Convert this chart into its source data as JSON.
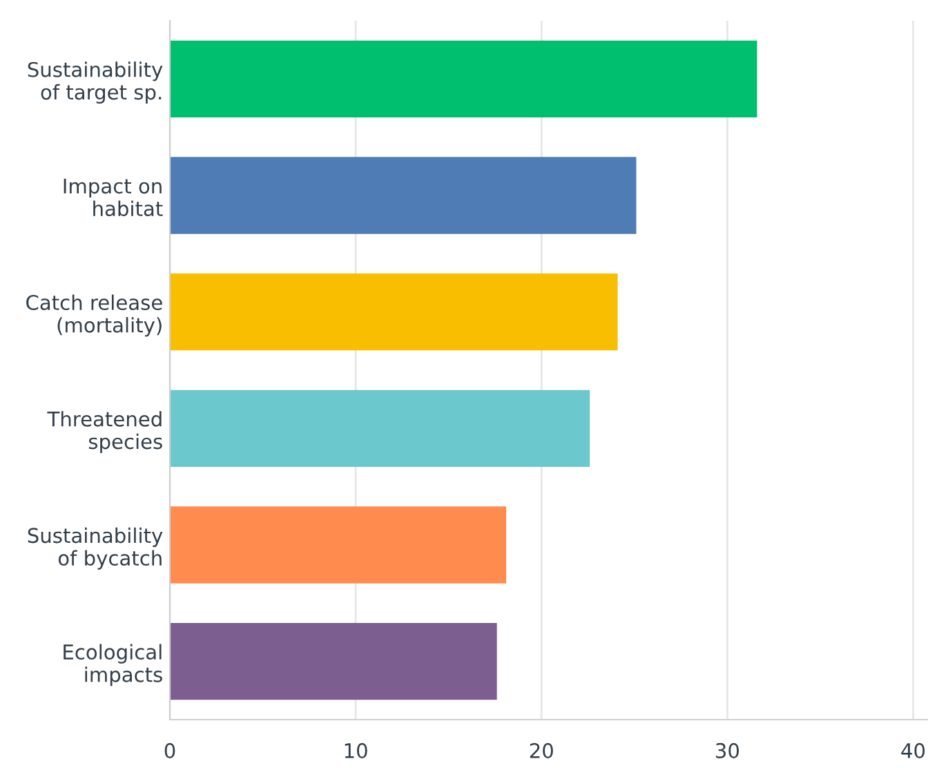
{
  "chart_data": {
    "type": "bar",
    "orientation": "horizontal",
    "categories": [
      "Sustainability\nof target sp.",
      "Impact on\nhabitat",
      "Catch release\n(mortality)",
      "Threatened\nspecies",
      "Sustainability\nof bycatch",
      "Ecological\nimpacts"
    ],
    "values": [
      31.6,
      25.1,
      24.1,
      22.6,
      18.1,
      17.6
    ],
    "colors": [
      "#00bf6f",
      "#507cb6",
      "#f9be00",
      "#6bc8cd",
      "#ff8b4f",
      "#7d5e90"
    ],
    "xlim": [
      0,
      40.8
    ],
    "xticks": [
      0,
      10,
      20,
      30,
      40
    ],
    "grid": "x"
  }
}
